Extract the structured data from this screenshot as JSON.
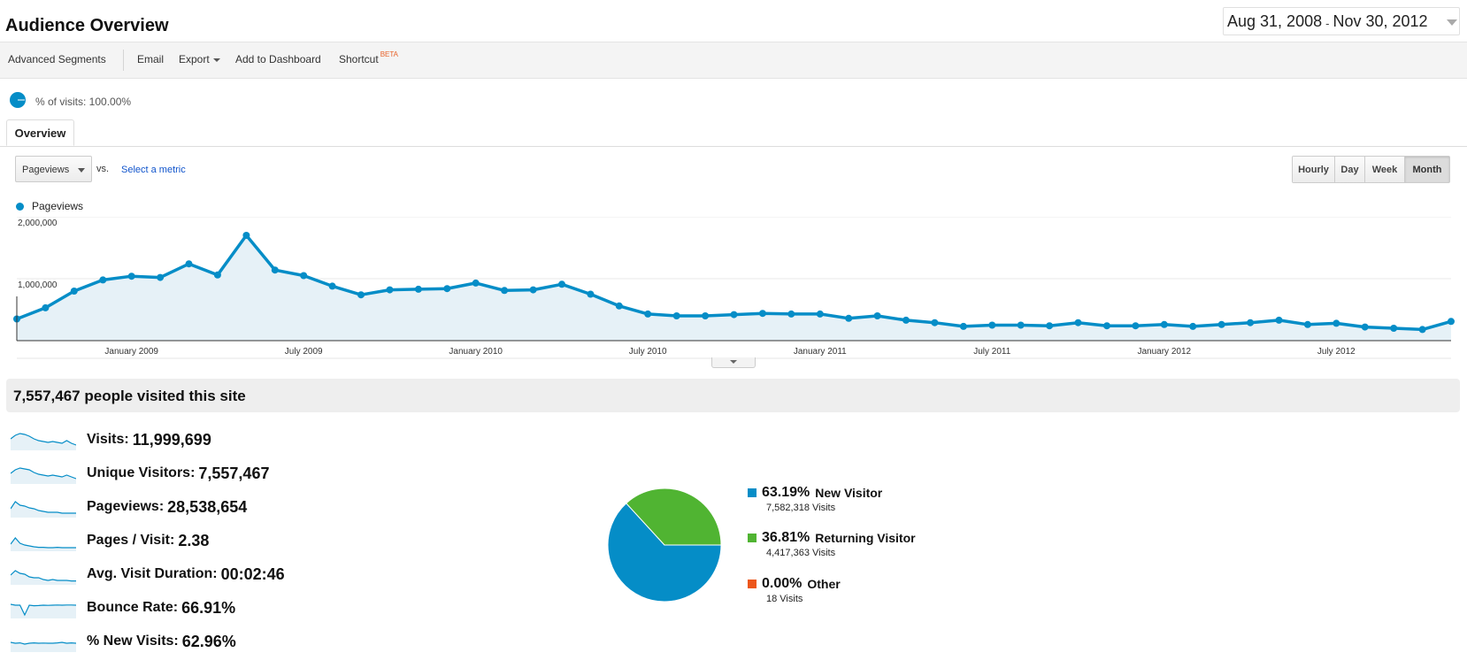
{
  "page": {
    "title": "Audience Overview"
  },
  "date_range": {
    "start": "Aug 31, 2008",
    "separator": "-",
    "end": "Nov 30, 2012"
  },
  "toolbar": {
    "advanced_segments": "Advanced Segments",
    "email": "Email",
    "export": "Export",
    "add_to_dashboard": "Add to Dashboard",
    "shortcut": "Shortcut",
    "shortcut_badge": "BETA"
  },
  "segment": {
    "text": "% of visits: 100.00%"
  },
  "tabs": {
    "overview": "Overview"
  },
  "metric_picker": {
    "selected": "Pageviews",
    "vs_label": "vs.",
    "select_metric": "Select a metric"
  },
  "granularity": {
    "hourly": "Hourly",
    "day": "Day",
    "week": "Week",
    "month": "Month",
    "active": "Month"
  },
  "colors": {
    "accent": "#058dc7",
    "new_visitor": "#058dc7",
    "returning_visitor": "#50b432",
    "other": "#ed561b",
    "area_fill": "#e6f1f7"
  },
  "chart_data": {
    "type": "area",
    "series": [
      {
        "name": "Pageviews",
        "values": [
          350000,
          530000,
          800000,
          980000,
          1040000,
          1020000,
          1240000,
          1060000,
          1700000,
          1140000,
          1050000,
          880000,
          740000,
          820000,
          830000,
          840000,
          930000,
          810000,
          820000,
          910000,
          750000,
          560000,
          430000,
          400000,
          400000,
          420000,
          440000,
          430000,
          430000,
          360000,
          400000,
          330000,
          290000,
          230000,
          250000,
          250000,
          240000,
          290000,
          240000,
          240000,
          260000,
          230000,
          260000,
          290000,
          330000,
          260000,
          280000,
          220000,
          200000,
          180000,
          310000
        ]
      }
    ],
    "x_ticks": [
      "January 2009",
      "July 2009",
      "January 2010",
      "July 2010",
      "January 2011",
      "July 2011",
      "January 2012",
      "July 2012"
    ],
    "y_ticks": [
      "2,000,000",
      "1,000,000"
    ],
    "ylim": [
      0,
      2000000
    ],
    "legend": "Pageviews"
  },
  "summary": {
    "headline": "7,557,467 people visited this site"
  },
  "metrics": [
    {
      "label": "Visits:",
      "value": "11,999,699",
      "spark": [
        0.55,
        0.75,
        0.85,
        0.8,
        0.7,
        0.55,
        0.45,
        0.4,
        0.35,
        0.4,
        0.35,
        0.3,
        0.45,
        0.3,
        0.2
      ]
    },
    {
      "label": "Unique Visitors:",
      "value": "7,557,467",
      "spark": [
        0.5,
        0.7,
        0.8,
        0.75,
        0.7,
        0.55,
        0.45,
        0.4,
        0.35,
        0.4,
        0.35,
        0.3,
        0.4,
        0.3,
        0.2
      ]
    },
    {
      "label": "Pageviews:",
      "value": "28,538,654",
      "spark": [
        0.4,
        0.8,
        0.6,
        0.55,
        0.45,
        0.4,
        0.3,
        0.25,
        0.2,
        0.2,
        0.2,
        0.15,
        0.15,
        0.15,
        0.15
      ]
    },
    {
      "label": "Pages / Visit:",
      "value": "2.38",
      "spark": [
        0.3,
        0.65,
        0.35,
        0.25,
        0.2,
        0.15,
        0.12,
        0.12,
        0.1,
        0.1,
        0.12,
        0.1,
        0.1,
        0.1,
        0.1
      ]
    },
    {
      "label": "Avg. Visit Duration:",
      "value": "00:02:46",
      "spark": [
        0.45,
        0.7,
        0.55,
        0.5,
        0.35,
        0.3,
        0.3,
        0.2,
        0.15,
        0.2,
        0.15,
        0.15,
        0.15,
        0.12,
        0.12
      ]
    },
    {
      "label": "Bounce Rate:",
      "value": "66.91%",
      "spark": [
        0.7,
        0.65,
        0.65,
        0.1,
        0.65,
        0.62,
        0.63,
        0.65,
        0.64,
        0.65,
        0.66,
        0.65,
        0.66,
        0.66,
        0.65
      ]
    },
    {
      "label": "% New Visits:",
      "value": "62.96%",
      "spark": [
        0.45,
        0.4,
        0.42,
        0.35,
        0.4,
        0.42,
        0.4,
        0.41,
        0.4,
        0.4,
        0.42,
        0.45,
        0.4,
        0.42,
        0.4
      ]
    }
  ],
  "visitor_pie": {
    "type": "pie",
    "slices": [
      {
        "pct_label": "63.19%",
        "name": "New Visitor",
        "visits": "7,582,318 Visits",
        "value": 63.19
      },
      {
        "pct_label": "36.81%",
        "name": "Returning Visitor",
        "visits": "4,417,363 Visits",
        "value": 36.81
      },
      {
        "pct_label": "0.00%",
        "name": "Other",
        "visits": "18 Visits",
        "value": 0.0
      }
    ]
  }
}
